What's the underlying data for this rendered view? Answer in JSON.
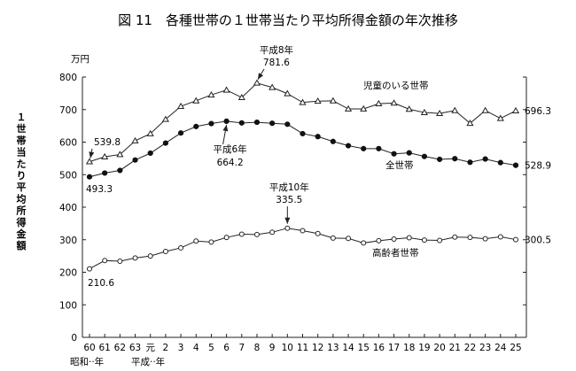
{
  "chart_data": {
    "type": "line",
    "title": "図 11　各種世帯の１世帯当たり平均所得金額の年次推移",
    "unit": "万円",
    "ylabel": "１世帯当たり平均所得金額",
    "ylim": [
      0,
      800
    ],
    "yticks": [
      "0",
      "100",
      "200",
      "300",
      "400",
      "500",
      "600",
      "700",
      "800"
    ],
    "categories": [
      "60",
      "61",
      "62",
      "63",
      "元",
      "2",
      "3",
      "4",
      "5",
      "6",
      "7",
      "8",
      "9",
      "10",
      "11",
      "12",
      "13",
      "14",
      "15",
      "16",
      "17",
      "18",
      "19",
      "20",
      "21",
      "22",
      "23",
      "24",
      "25"
    ],
    "era_labels": [
      "昭和··年",
      "平成··年"
    ],
    "grid": false,
    "series": [
      {
        "name": "児童のいる世帯",
        "marker": "triangle-open",
        "values": [
          539.8,
          555,
          562,
          604,
          626,
          670,
          710,
          727,
          745,
          760,
          737,
          781.6,
          768,
          749,
          722,
          726,
          727,
          702,
          702,
          718,
          720,
          701,
          691,
          688,
          697,
          658,
          697,
          673,
          696.3
        ]
      },
      {
        "name": "全世帯",
        "marker": "circle-filled",
        "values": [
          493.3,
          505,
          513,
          545,
          566,
          597,
          628,
          648,
          657,
          664.2,
          659,
          661,
          658,
          655,
          626,
          617,
          602,
          589,
          580,
          580,
          564,
          567,
          556,
          547,
          549,
          538,
          548,
          537,
          528.9
        ]
      },
      {
        "name": "高齢者世帯",
        "marker": "circle-open",
        "values": [
          210.6,
          236,
          234,
          244,
          250,
          264,
          275,
          296,
          293,
          307,
          317,
          316,
          323,
          335.5,
          328,
          319,
          305,
          304,
          290,
          297,
          302,
          306,
          299,
          298,
          308,
          307,
          303,
          309,
          300.5
        ]
      }
    ],
    "annotations": [
      {
        "series": 0,
        "index": 0,
        "text": "539.8"
      },
      {
        "series": 1,
        "index": 0,
        "text": "493.3"
      },
      {
        "series": 2,
        "index": 0,
        "text": "210.6"
      },
      {
        "series": 0,
        "index": 28,
        "text": "696.3"
      },
      {
        "series": 1,
        "index": 28,
        "text": "528.9"
      },
      {
        "series": 2,
        "index": 28,
        "text": "300.5"
      },
      {
        "series": 0,
        "index": 11,
        "text": "平成8年 781.6",
        "line1": "平成8年",
        "line2": "781.6"
      },
      {
        "series": 1,
        "index": 9,
        "text": "平成6年 664.2",
        "line1": "平成6年",
        "line2": "664.2"
      },
      {
        "series": 2,
        "index": 13,
        "text": "平成10年 335.5",
        "line1": "平成10年",
        "line2": "335.5"
      }
    ]
  }
}
